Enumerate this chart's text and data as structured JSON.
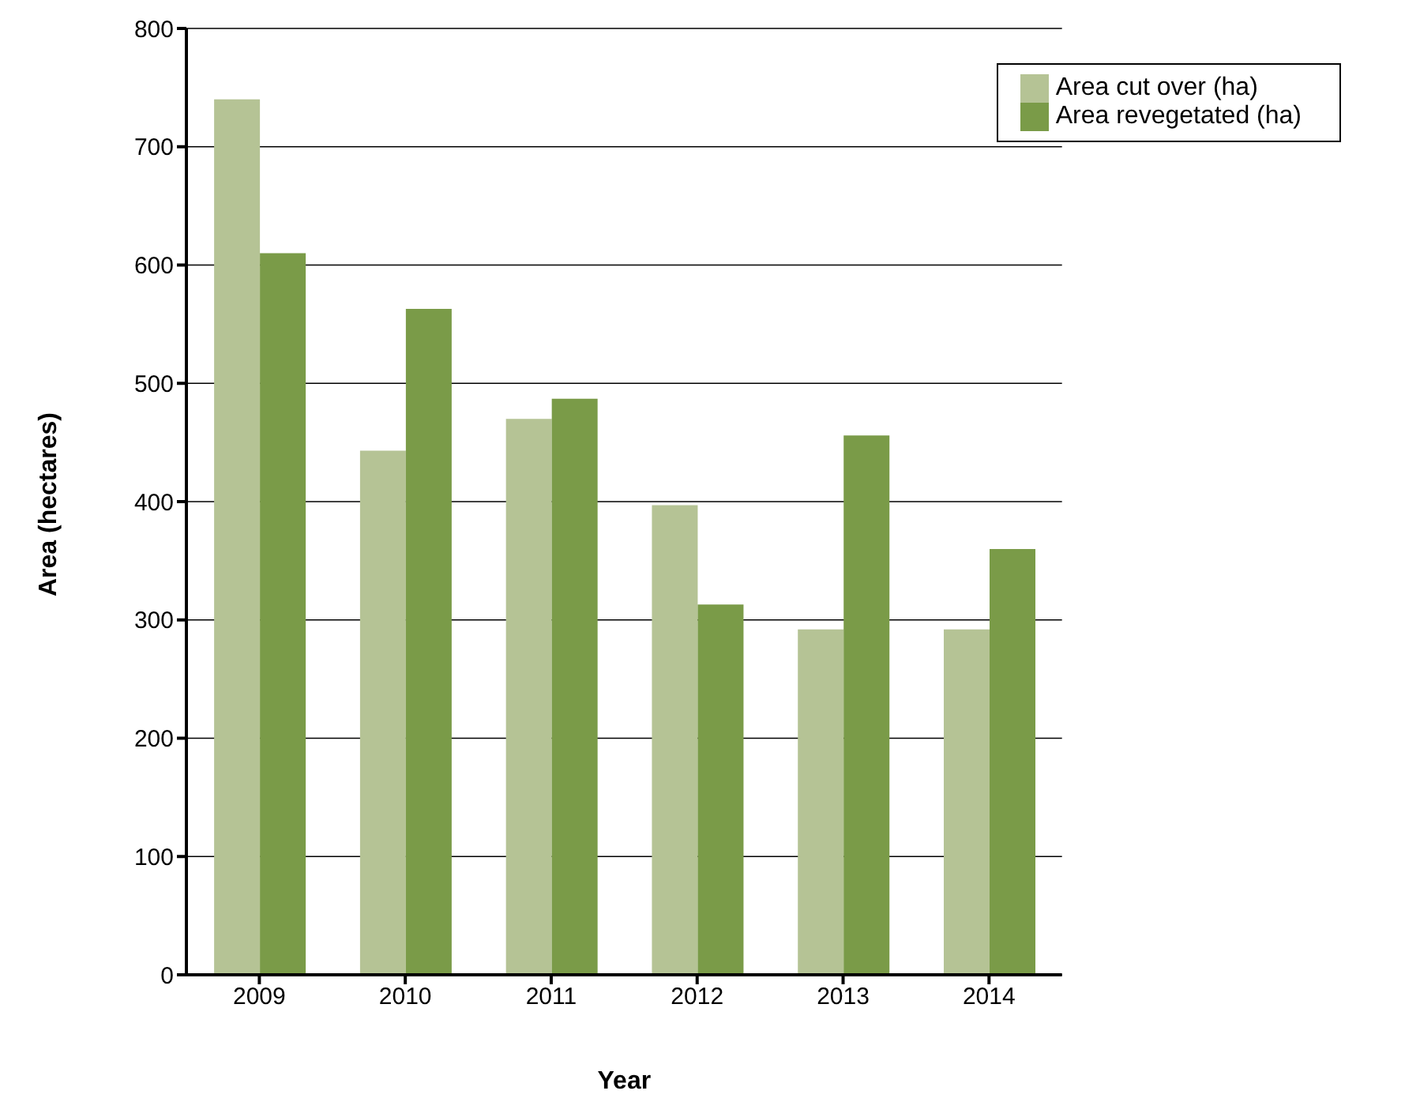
{
  "chart_data": {
    "type": "bar",
    "xlabel": "Year",
    "ylabel": "Area (hectares)",
    "categories": [
      "2009",
      "2010",
      "2011",
      "2012",
      "2013",
      "2014"
    ],
    "series": [
      {
        "name": "Area cut over (ha)",
        "color": "#b5c395",
        "values": [
          740,
          443,
          470,
          397,
          292,
          292
        ]
      },
      {
        "name": "Area revegetated (ha)",
        "color": "#7a9b48",
        "values": [
          610,
          563,
          487,
          313,
          456,
          360
        ]
      }
    ],
    "ylim": [
      0,
      800
    ],
    "yticks": [
      0,
      100,
      200,
      300,
      400,
      500,
      600,
      700,
      800
    ],
    "grid": "y",
    "legend": "top right"
  }
}
